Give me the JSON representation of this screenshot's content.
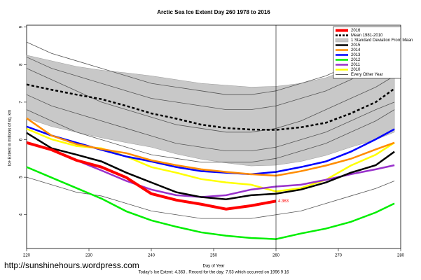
{
  "chart_data": {
    "type": "line",
    "title": "Arctic Sea Ice Extent Day 260 1978 to 2016",
    "x_label": "Day of Year",
    "y_label": "Ice Extent in millions of sq. km",
    "footnote": "Today's Ice Extent: 4.363 . Record for the day: 7.53 which occurred on 1996 9 16",
    "source": "http://sunshinehours.wordpress.com",
    "x": [
      220,
      224,
      228,
      232,
      236,
      240,
      244,
      248,
      252,
      256,
      260,
      264,
      268,
      272,
      276,
      279
    ],
    "xlim": [
      220,
      280
    ],
    "xticks": [
      220,
      230,
      240,
      250,
      260,
      270,
      280
    ],
    "ylim": [
      3.1,
      9.05
    ],
    "yticks": [
      4,
      5,
      6,
      7,
      8,
      9
    ],
    "marker_day": 260,
    "end_label_series": 0,
    "legend": "upper right",
    "series": [
      {
        "name": "2016",
        "color": "#ff0000",
        "width": 4,
        "values": [
          5.92,
          5.73,
          5.45,
          5.27,
          4.99,
          4.56,
          4.39,
          4.28,
          4.15,
          4.24,
          4.363,
          null,
          null,
          null,
          null,
          null
        ]
      },
      {
        "name": "Mean 1981-2010",
        "color": "#000000",
        "width": 2.5,
        "dashed": true,
        "values": [
          7.47,
          7.33,
          7.2,
          7.08,
          6.9,
          6.7,
          6.56,
          6.4,
          6.31,
          6.27,
          6.26,
          6.33,
          6.45,
          6.7,
          7.0,
          7.36
        ]
      },
      {
        "name": "1 Standard Deviation From Mean",
        "color": "#c8c8c8",
        "band": true,
        "upper": [
          8.25,
          8.1,
          7.95,
          7.85,
          7.78,
          7.7,
          7.6,
          7.5,
          7.45,
          7.4,
          7.42,
          7.5,
          7.65,
          7.9,
          8.25,
          8.6
        ],
        "lower": [
          6.57,
          6.35,
          6.2,
          6.05,
          5.92,
          5.8,
          5.62,
          5.48,
          5.38,
          5.3,
          5.32,
          5.42,
          5.58,
          5.8,
          6.0,
          6.2
        ]
      },
      {
        "name": "2015",
        "color": "#000000",
        "width": 2.5,
        "values": [
          6.18,
          5.77,
          5.6,
          5.42,
          5.12,
          4.86,
          4.6,
          4.47,
          4.41,
          4.52,
          4.56,
          4.67,
          4.86,
          5.12,
          5.32,
          5.68
        ]
      },
      {
        "name": "2014",
        "color": "#ff8c00",
        "width": 2.5,
        "values": [
          6.57,
          6.11,
          5.88,
          5.75,
          5.64,
          5.45,
          5.32,
          5.21,
          5.14,
          5.08,
          5.04,
          5.16,
          5.31,
          5.49,
          5.74,
          5.92
        ]
      },
      {
        "name": "2013",
        "color": "#0000ff",
        "width": 2.5,
        "values": [
          6.35,
          6.11,
          5.92,
          5.73,
          5.55,
          5.42,
          5.27,
          5.16,
          5.12,
          5.08,
          5.14,
          5.27,
          5.42,
          5.68,
          6.01,
          6.28
        ]
      },
      {
        "name": "2012",
        "color": "#00ee00",
        "width": 2.5,
        "values": [
          5.27,
          4.99,
          4.71,
          4.43,
          4.09,
          3.85,
          3.68,
          3.53,
          3.44,
          3.38,
          3.35,
          3.5,
          3.63,
          3.81,
          4.06,
          4.3
        ]
      },
      {
        "name": "2011",
        "color": "#9932cc",
        "width": 2.5,
        "values": [
          5.92,
          5.73,
          5.45,
          5.18,
          4.9,
          4.67,
          4.52,
          4.47,
          4.52,
          4.67,
          4.75,
          4.8,
          4.93,
          5.08,
          5.21,
          5.32
        ]
      },
      {
        "name": "2010",
        "color": "#ffff00",
        "width": 2.5,
        "values": [
          6.29,
          6.01,
          5.83,
          5.77,
          5.55,
          5.27,
          5.12,
          4.95,
          4.86,
          4.8,
          4.62,
          4.71,
          4.93,
          5.31,
          5.6,
          5.92
        ]
      },
      {
        "name": "Every Other Year",
        "color": "#555555",
        "width": 0.8,
        "values": [
          8.6,
          8.3,
          8.1,
          7.9,
          7.7,
          7.5,
          7.4,
          7.3,
          7.2,
          7.2,
          7.3,
          7.5,
          7.7,
          8.0,
          8.3,
          8.6
        ]
      }
    ],
    "other_years": [
      [
        7.9,
        7.6,
        7.3,
        7.0,
        6.8,
        6.6,
        6.4,
        6.3,
        6.2,
        6.2,
        6.3,
        6.5,
        6.8,
        7.1,
        7.4,
        7.7
      ],
      [
        7.2,
        6.9,
        6.7,
        6.5,
        6.3,
        6.1,
        5.9,
        5.8,
        5.7,
        5.7,
        5.8,
        6.0,
        6.2,
        6.5,
        6.8,
        7.0
      ],
      [
        8.2,
        7.9,
        7.7,
        7.5,
        7.3,
        7.1,
        7.0,
        6.9,
        6.8,
        6.8,
        6.9,
        7.1,
        7.3,
        7.6,
        8.0,
        8.3
      ],
      [
        5.0,
        4.8,
        4.6,
        4.5,
        4.3,
        4.1,
        4.0,
        3.9,
        3.9,
        3.9,
        4.0,
        4.1,
        4.3,
        4.5,
        4.7,
        4.9
      ],
      [
        6.8,
        6.5,
        6.2,
        6.0,
        5.8,
        5.6,
        5.5,
        5.4,
        5.4,
        5.4,
        5.5,
        5.7,
        5.9,
        6.2,
        6.5,
        6.8
      ]
    ]
  }
}
